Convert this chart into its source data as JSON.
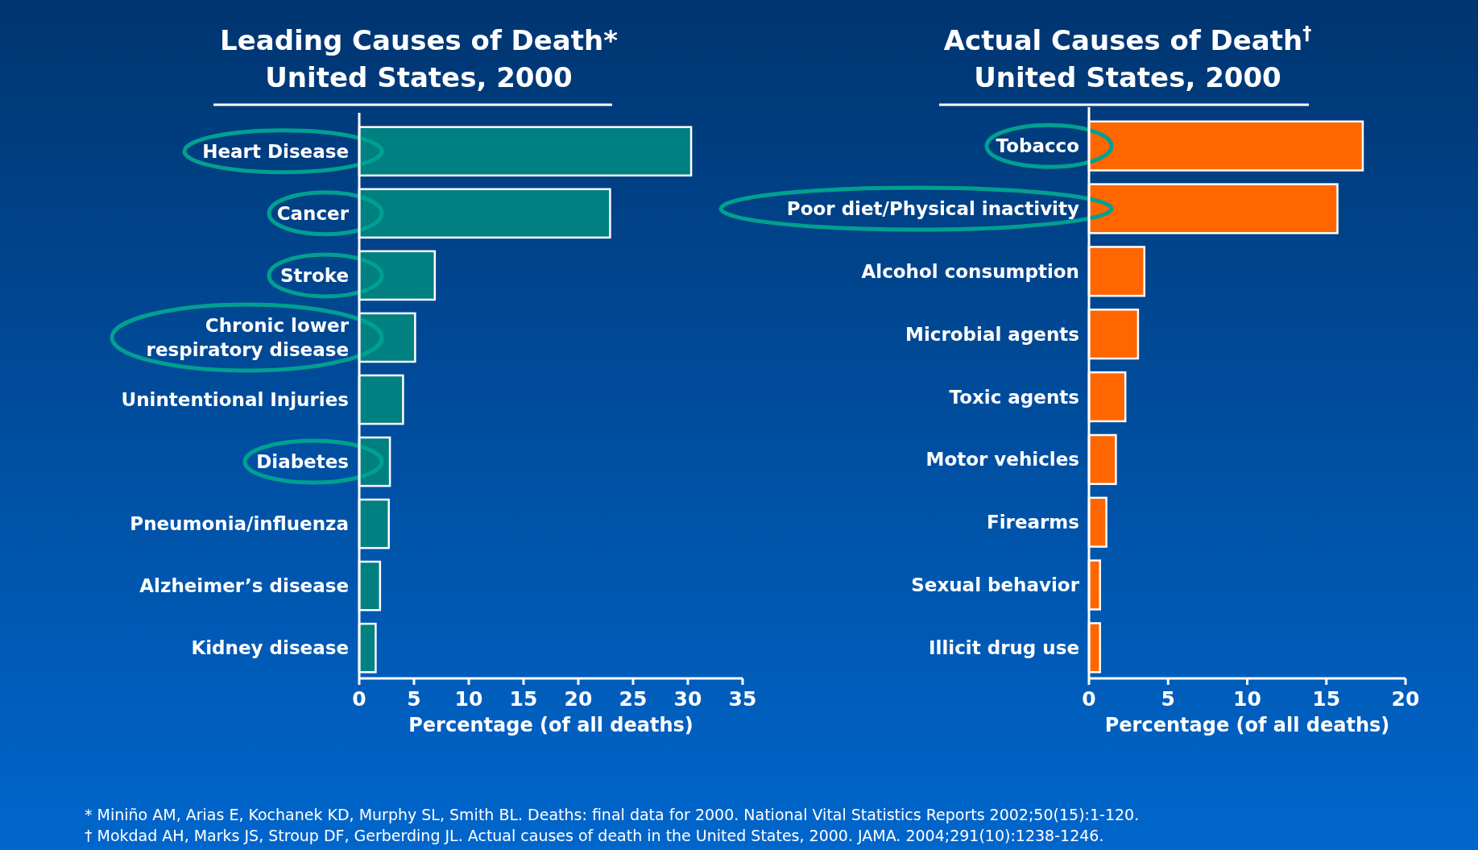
{
  "chart_data": [
    {
      "type": "bar",
      "orientation": "horizontal",
      "title": "Leading Causes of Death*\nUnited States, 2000",
      "xlabel": "Percentage (of all deaths)",
      "categories": [
        "Heart Disease",
        "Cancer",
        "Stroke",
        "Chronic lower\nrespiratory disease",
        "Unintentional Injuries",
        "Diabetes",
        "Pneumonia/influenza",
        "Alzheimer’s disease",
        "Kidney disease"
      ],
      "values": [
        30.3,
        22.9,
        6.9,
        5.1,
        4.0,
        2.8,
        2.7,
        1.9,
        1.5
      ],
      "color": "#008080",
      "xlim": [
        0,
        35
      ],
      "xticks": [
        0,
        5,
        10,
        15,
        20,
        25,
        30,
        35
      ],
      "annotations": [
        "* Miniño AM, Arias E, Kochanek KD, Murphy SL, Smith BL. Deaths: final data for 2000. National Vital Statistics Reports 2002;50(15):1-120."
      ]
    },
    {
      "type": "bar",
      "orientation": "horizontal",
      "title": "Actual Causes of Death$^{†}$\nUnited States, 2000",
      "xlabel": "Percentage (of all deaths)",
      "categories": [
        "Tobacco",
        "Poor diet/Physical inactivity",
        "Alcohol consumption",
        "Microbial agents",
        "Toxic agents",
        "Motor vehicles",
        "Firearms",
        "Sexual behavior",
        "Illicit drug use"
      ],
      "values": [
        17.3,
        15.7,
        3.5,
        3.1,
        2.3,
        1.7,
        1.1,
        0.7,
        0.7
      ],
      "color": "#ff6600",
      "xlim": [
        0,
        20
      ],
      "xticks": [
        0,
        5,
        10,
        15,
        20
      ],
      "annotations": [
        "† Mokdad AH, Marks JS, Stroup DF, Gerberding JL. Actual causes of death in the United States, 2000. JAMA. 2004;291(10):1238-1246."
      ]
    }
  ]
}
